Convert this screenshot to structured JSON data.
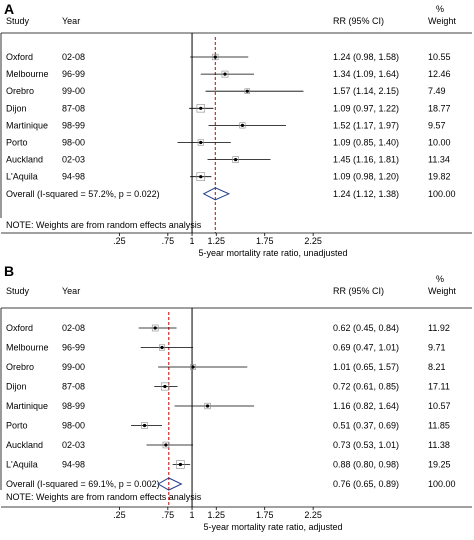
{
  "chart_data": [
    {
      "type": "forest",
      "panel_label": "A",
      "headers": {
        "study": "Study",
        "year": "Year",
        "rr": "RR (95% CI)",
        "weight_pct": "%",
        "weight": "Weight"
      },
      "studies": [
        {
          "name": "Oxford",
          "year": "02-08",
          "rr": 1.24,
          "lo": 0.98,
          "hi": 1.58,
          "rr_text": "1.24 (0.98, 1.58)",
          "weight": "10.55"
        },
        {
          "name": "Melbourne",
          "year": "96-99",
          "rr": 1.34,
          "lo": 1.09,
          "hi": 1.64,
          "rr_text": "1.34 (1.09, 1.64)",
          "weight": "12.46"
        },
        {
          "name": "Orebro",
          "year": "99-00",
          "rr": 1.57,
          "lo": 1.14,
          "hi": 2.15,
          "rr_text": "1.57 (1.14, 2.15)",
          "weight": "7.49"
        },
        {
          "name": "Dijon",
          "year": "87-08",
          "rr": 1.09,
          "lo": 0.97,
          "hi": 1.22,
          "rr_text": "1.09 (0.97, 1.22)",
          "weight": "18.77"
        },
        {
          "name": "Martinique",
          "year": "98-99",
          "rr": 1.52,
          "lo": 1.17,
          "hi": 1.97,
          "rr_text": "1.52 (1.17, 1.97)",
          "weight": "9.57"
        },
        {
          "name": "Porto",
          "year": "98-00",
          "rr": 1.09,
          "lo": 0.85,
          "hi": 1.4,
          "rr_text": "1.09 (0.85, 1.40)",
          "weight": "10.00"
        },
        {
          "name": "Auckland",
          "year": "02-03",
          "rr": 1.45,
          "lo": 1.16,
          "hi": 1.81,
          "rr_text": "1.45 (1.16, 1.81)",
          "weight": "11.34"
        },
        {
          "name": "L'Aquila",
          "year": "94-98",
          "rr": 1.09,
          "lo": 0.98,
          "hi": 1.2,
          "rr_text": "1.09 (0.98, 1.20)",
          "weight": "19.82"
        }
      ],
      "overall": {
        "label": "Overall  (I-squared = 57.2%, p = 0.022)",
        "rr": 1.24,
        "lo": 1.12,
        "hi": 1.38,
        "rr_text": "1.24 (1.12, 1.38)",
        "weight": "100.00"
      },
      "note": "NOTE: Weights are from random effects analysis",
      "x_ticks": [
        0.25,
        0.75,
        1,
        1.25,
        1.75,
        2.25
      ],
      "x_tick_labels": [
        ".25",
        ".75",
        "1",
        "1.25",
        "1.75",
        "2.25"
      ],
      "xlim": [
        0.05,
        2.3
      ],
      "xlabel": "5-year mortality rate ratio, unadjusted",
      "null_line": 1,
      "dashed_line_at": 1.24,
      "dashed_line_color": "#cc0000",
      "diamond_color": "#1f3c88"
    },
    {
      "type": "forest",
      "panel_label": "B",
      "headers": {
        "study": "Study",
        "year": "Year",
        "rr": "RR (95% CI)",
        "weight_pct": "%",
        "weight": "Weight"
      },
      "studies": [
        {
          "name": "Oxford",
          "year": "02-08",
          "rr": 0.62,
          "lo": 0.45,
          "hi": 0.84,
          "rr_text": "0.62 (0.45, 0.84)",
          "weight": "11.92"
        },
        {
          "name": "Melbourne",
          "year": "96-99",
          "rr": 0.69,
          "lo": 0.47,
          "hi": 1.01,
          "rr_text": "0.69 (0.47, 1.01)",
          "weight": "9.71"
        },
        {
          "name": "Orebro",
          "year": "99-00",
          "rr": 1.01,
          "lo": 0.65,
          "hi": 1.57,
          "rr_text": "1.01 (0.65, 1.57)",
          "weight": "8.21"
        },
        {
          "name": "Dijon",
          "year": "87-08",
          "rr": 0.72,
          "lo": 0.61,
          "hi": 0.85,
          "rr_text": "0.72 (0.61, 0.85)",
          "weight": "17.11"
        },
        {
          "name": "Martinique",
          "year": "98-99",
          "rr": 1.16,
          "lo": 0.82,
          "hi": 1.64,
          "rr_text": "1.16 (0.82, 1.64)",
          "weight": "10.57"
        },
        {
          "name": "Porto",
          "year": "98-00",
          "rr": 0.51,
          "lo": 0.37,
          "hi": 0.69,
          "rr_text": "0.51 (0.37, 0.69)",
          "weight": "11.85"
        },
        {
          "name": "Auckland",
          "year": "02-03",
          "rr": 0.73,
          "lo": 0.53,
          "hi": 1.01,
          "rr_text": "0.73 (0.53, 1.01)",
          "weight": "11.38"
        },
        {
          "name": "L'Aquila",
          "year": "94-98",
          "rr": 0.88,
          "lo": 0.8,
          "hi": 0.98,
          "rr_text": "0.88 (0.80, 0.98)",
          "weight": "19.25"
        }
      ],
      "overall": {
        "label": "Overall  (I-squared = 69.1%, p = 0.002)",
        "rr": 0.76,
        "lo": 0.65,
        "hi": 0.89,
        "rr_text": "0.76 (0.65, 0.89)",
        "weight": "100.00"
      },
      "note": "NOTE: Weights are from random effects analysis",
      "x_ticks": [
        0.25,
        0.75,
        1,
        1.25,
        1.75,
        2.25
      ],
      "x_tick_labels": [
        ".25",
        ".75",
        "1",
        "1.25",
        "1.75",
        "2.25"
      ],
      "xlim": [
        0.05,
        2.3
      ],
      "xlabel": "5-year mortality rate ratio, adjusted",
      "null_line": 1,
      "dashed_line_at": 0.76,
      "dashed_line_color": "#cc0000",
      "diamond_color": "#1f3c88"
    }
  ]
}
